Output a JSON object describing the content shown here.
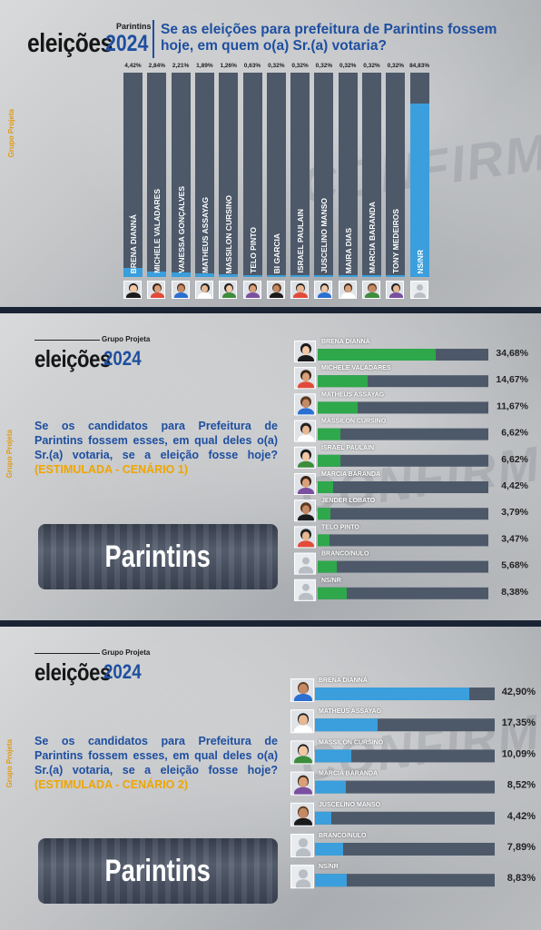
{
  "colors": {
    "brand_blue": "#1e4fa0",
    "accent_orange": "#f0a500",
    "bar_bg": "#4d5969",
    "bar_blue": "#3a9fdc",
    "bar_green": "#2ea84a"
  },
  "brand": {
    "group": "Grupo Projeta",
    "title": "eleições",
    "year": "2024",
    "city_tag": "Parintins"
  },
  "side_tag": "Grupo Projeta",
  "watermark": "CONFIRMA",
  "panel1": {
    "question": "Se as eleições para prefeitura de Parintins fossem hoje, em quem o(a) Sr.(a) votaria?"
  },
  "panel2": {
    "question": "Se os candidatos para Prefeitura de Parintins fossem esses, em qual deles o(a) Sr.(a) votaria, se a eleição fosse hoje?",
    "question_tag": "(ESTIMULADA - CENÁRIO 1)",
    "city": "Parintins"
  },
  "panel3": {
    "question": "Se os candidatos para Prefeitura de Parintins fossem esses, em qual deles o(a) Sr.(a) votaria, se a eleição fosse hoje?",
    "question_tag": "(ESTIMULADA - CENÁRIO 2)",
    "city": "Parintins"
  },
  "chart_data": [
    {
      "type": "bar",
      "orientation": "vertical",
      "title": "Se as eleições para prefeitura de Parintins fossem hoje, em quem o(a) Sr.(a) votaria?",
      "categories": [
        "BRENA DIANNÁ",
        "MICHELE VALADARES",
        "VANESSA GONÇALVES",
        "MATHEUS ASSAYAG",
        "MASSILON CURSINO",
        "TELO PINTO",
        "BI GARCIA",
        "ISRAEL PAULAIN",
        "JUSCELINO MANSO",
        "MAIRA DIAS",
        "MARCIA BARANDA",
        "TONY MEDEIROS",
        "NS/NR"
      ],
      "values": [
        4.42,
        2.84,
        2.21,
        1.89,
        1.26,
        0.63,
        0.32,
        0.32,
        0.32,
        0.32,
        0.32,
        0.32,
        84.83
      ],
      "labels": [
        "4,42%",
        "2,84%",
        "2,21%",
        "1,89%",
        "1,26%",
        "0,63%",
        "0,32%",
        "0,32%",
        "0,32%",
        "0,32%",
        "0,32%",
        "0,32%",
        "84,83%"
      ],
      "ylim": [
        0,
        100
      ]
    },
    {
      "type": "bar",
      "orientation": "horizontal",
      "title": "(ESTIMULADA - CENÁRIO 1)",
      "categories": [
        "BRENA DIANNÁ",
        "MICHELE VALADARES",
        "MATHEUS ASSAYAG",
        "MASSILON CURSINO",
        "ISRAEL PAULAIN",
        "MARCIA BARANDA",
        "JENDER LOBATO",
        "TELO PINTO",
        "BRANCO/NULO",
        "NS/NR"
      ],
      "values": [
        34.68,
        14.67,
        11.67,
        6.62,
        6.62,
        4.42,
        3.79,
        3.47,
        5.68,
        8.38
      ],
      "labels": [
        "34,68%",
        "14,67%",
        "11,67%",
        "6,62%",
        "6,62%",
        "4,42%",
        "3,79%",
        "3,47%",
        "5,68%",
        "8,38%"
      ],
      "xlim": [
        0,
        50
      ]
    },
    {
      "type": "bar",
      "orientation": "horizontal",
      "title": "(ESTIMULADA - CENÁRIO 2)",
      "categories": [
        "BRENA DIANNÁ",
        "MATHEUS ASSAYAG",
        "MASSILON CURSINO",
        "MARCIA BARANDA",
        "JUSCELINO MANSO",
        "BRANCO/NULO",
        "NS/NR"
      ],
      "values": [
        42.9,
        17.35,
        10.09,
        8.52,
        4.42,
        7.89,
        8.83
      ],
      "labels": [
        "42,90%",
        "17,35%",
        "10,09%",
        "8,52%",
        "4,42%",
        "7,89%",
        "8,83%"
      ],
      "xlim": [
        0,
        50
      ]
    }
  ]
}
